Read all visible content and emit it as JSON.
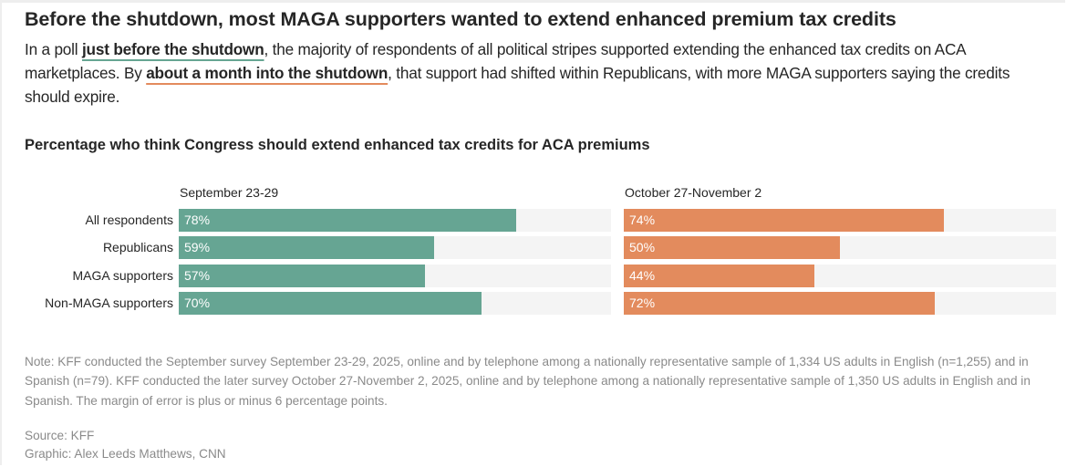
{
  "header": {
    "title": "Before the shutdown, most MAGA supporters wanted to extend enhanced premium tax credits",
    "dek": {
      "part1": "In a poll ",
      "highlight1": "just before the shutdown",
      "part2": ", the majority of respondents of all political stripes supported extending the enhanced tax credits on ACA marketplaces. By ",
      "highlight2": "about a month into the shutdown",
      "part3": ", that support had shifted within Republicans, with more MAGA supporters saying the credits should expire."
    }
  },
  "chart_data": {
    "type": "bar",
    "orientation": "horizontal",
    "title": "Percentage who think Congress should extend enhanced tax credits for ACA premiums",
    "xlabel": "",
    "ylabel": "",
    "xlim": [
      0,
      100
    ],
    "grid": false,
    "categories": [
      "All respondents",
      "Republicans",
      "MAGA supporters",
      "Non-MAGA supporters"
    ],
    "series": [
      {
        "name": "September 23-29",
        "color": "#66a593",
        "values": [
          78,
          59,
          57,
          70
        ],
        "labels": [
          "78%",
          "59%",
          "57%",
          "70%"
        ]
      },
      {
        "name": "October 27-November 2",
        "color": "#e38b5d",
        "values": [
          74,
          50,
          44,
          72
        ],
        "labels": [
          "74%",
          "50%",
          "44%",
          "72%"
        ]
      }
    ],
    "track_color": "#f4f4f4"
  },
  "footer": {
    "note": "Note: KFF conducted the September survey September 23-29, 2025, online and by telephone among a nationally representative sample of 1,334 US adults in English (n=1,255) and in Spanish (n=79). KFF conducted the later survey October 27-November 2, 2025, online and by telephone among a nationally representative sample of 1,350 US adults in English and in Spanish. The margin of error is plus or minus 6 percentage points.",
    "source": "Source: KFF",
    "graphic": "Graphic: Alex Leeds Matthews, CNN"
  }
}
